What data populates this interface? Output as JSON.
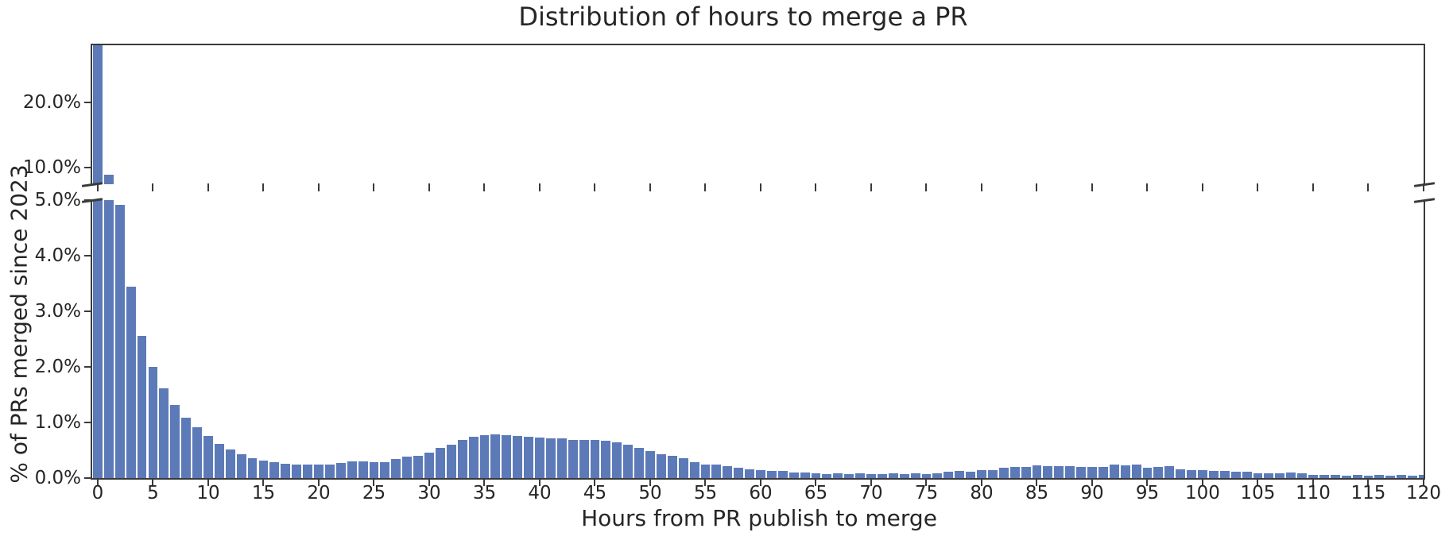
{
  "chart_data": {
    "type": "bar",
    "title": "Distribution of hours to merge a PR",
    "xlabel": "Hours from PR publish to merge",
    "ylabel": "% of PRs merged since 2023",
    "x_hours": [
      0,
      1,
      2,
      3,
      4,
      5,
      6,
      7,
      8,
      9,
      10,
      11,
      12,
      13,
      14,
      15,
      16,
      17,
      18,
      19,
      20,
      21,
      22,
      23,
      24,
      25,
      26,
      27,
      28,
      29,
      30,
      31,
      32,
      33,
      34,
      35,
      36,
      37,
      38,
      39,
      40,
      41,
      42,
      43,
      44,
      45,
      46,
      47,
      48,
      49,
      50,
      51,
      52,
      53,
      54,
      55,
      56,
      57,
      58,
      59,
      60,
      61,
      62,
      63,
      64,
      65,
      66,
      67,
      68,
      69,
      70,
      71,
      72,
      73,
      74,
      75,
      76,
      77,
      78,
      79,
      80,
      81,
      82,
      83,
      84,
      85,
      86,
      87,
      88,
      89,
      90,
      91,
      92,
      93,
      94,
      95,
      96,
      97,
      98,
      99,
      100,
      101,
      102,
      103,
      104,
      105,
      106,
      107,
      108,
      109,
      110,
      111,
      112,
      113,
      114,
      115,
      116,
      117,
      118,
      119,
      120
    ],
    "values_percent": [
      28.7,
      8.9,
      4.92,
      3.45,
      2.56,
      2.0,
      1.61,
      1.31,
      1.09,
      0.91,
      0.76,
      0.61,
      0.51,
      0.43,
      0.36,
      0.31,
      0.28,
      0.26,
      0.25,
      0.24,
      0.24,
      0.25,
      0.27,
      0.3,
      0.3,
      0.29,
      0.29,
      0.34,
      0.38,
      0.4,
      0.46,
      0.54,
      0.6,
      0.68,
      0.74,
      0.77,
      0.78,
      0.77,
      0.76,
      0.75,
      0.73,
      0.71,
      0.71,
      0.68,
      0.68,
      0.68,
      0.67,
      0.64,
      0.6,
      0.54,
      0.48,
      0.43,
      0.4,
      0.36,
      0.28,
      0.25,
      0.24,
      0.22,
      0.19,
      0.16,
      0.14,
      0.13,
      0.13,
      0.1,
      0.1,
      0.08,
      0.07,
      0.08,
      0.07,
      0.08,
      0.07,
      0.07,
      0.08,
      0.07,
      0.08,
      0.07,
      0.08,
      0.12,
      0.13,
      0.11,
      0.15,
      0.14,
      0.19,
      0.2,
      0.2,
      0.23,
      0.22,
      0.22,
      0.22,
      0.2,
      0.2,
      0.2,
      0.24,
      0.23,
      0.24,
      0.19,
      0.2,
      0.21,
      0.16,
      0.15,
      0.15,
      0.13,
      0.13,
      0.11,
      0.11,
      0.09,
      0.09,
      0.09,
      0.1,
      0.08,
      0.06,
      0.06,
      0.06,
      0.05,
      0.06,
      0.05,
      0.06,
      0.05,
      0.06,
      0.05,
      0.06
    ],
    "y_axis_break": {
      "lower_ylim_percent": [
        0,
        5
      ],
      "upper_ylim_percent": [
        7.5,
        28.7
      ],
      "note": "broken y-axis; first bar clipped at top of upper panel"
    },
    "x_ticks": [
      {
        "v": 0,
        "label": "0"
      },
      {
        "v": 5,
        "label": "5"
      },
      {
        "v": 10,
        "label": "10"
      },
      {
        "v": 15,
        "label": "15"
      },
      {
        "v": 20,
        "label": "20"
      },
      {
        "v": 25,
        "label": "25"
      },
      {
        "v": 30,
        "label": "30"
      },
      {
        "v": 35,
        "label": "35"
      },
      {
        "v": 40,
        "label": "40"
      },
      {
        "v": 45,
        "label": "45"
      },
      {
        "v": 50,
        "label": "50"
      },
      {
        "v": 55,
        "label": "55"
      },
      {
        "v": 60,
        "label": "60"
      },
      {
        "v": 65,
        "label": "65"
      },
      {
        "v": 70,
        "label": "70"
      },
      {
        "v": 75,
        "label": "75"
      },
      {
        "v": 80,
        "label": "80"
      },
      {
        "v": 85,
        "label": "85"
      },
      {
        "v": 90,
        "label": "90"
      },
      {
        "v": 95,
        "label": "95"
      },
      {
        "v": 100,
        "label": "100"
      },
      {
        "v": 105,
        "label": "105"
      },
      {
        "v": 110,
        "label": "110"
      },
      {
        "v": 115,
        "label": "115"
      },
      {
        "v": 120,
        "label": "120"
      }
    ],
    "lower_y_ticks": [
      {
        "v": 0,
        "label": "0.0%"
      },
      {
        "v": 1,
        "label": "1.0%"
      },
      {
        "v": 2,
        "label": "2.0%"
      },
      {
        "v": 3,
        "label": "3.0%"
      },
      {
        "v": 4,
        "label": "4.0%"
      },
      {
        "v": 5,
        "label": "5.0%"
      }
    ],
    "upper_y_ticks": [
      {
        "v": 10,
        "label": "10.0%"
      },
      {
        "v": 20,
        "label": "20.0%"
      }
    ],
    "xlim": [
      -0.5,
      120
    ],
    "grid": false,
    "legend_position": "none",
    "bar_color": "#5d7ab8",
    "bar_edge_color": "#ffffff",
    "spine_color": "#3a3a3a",
    "text_color": "#262626"
  }
}
